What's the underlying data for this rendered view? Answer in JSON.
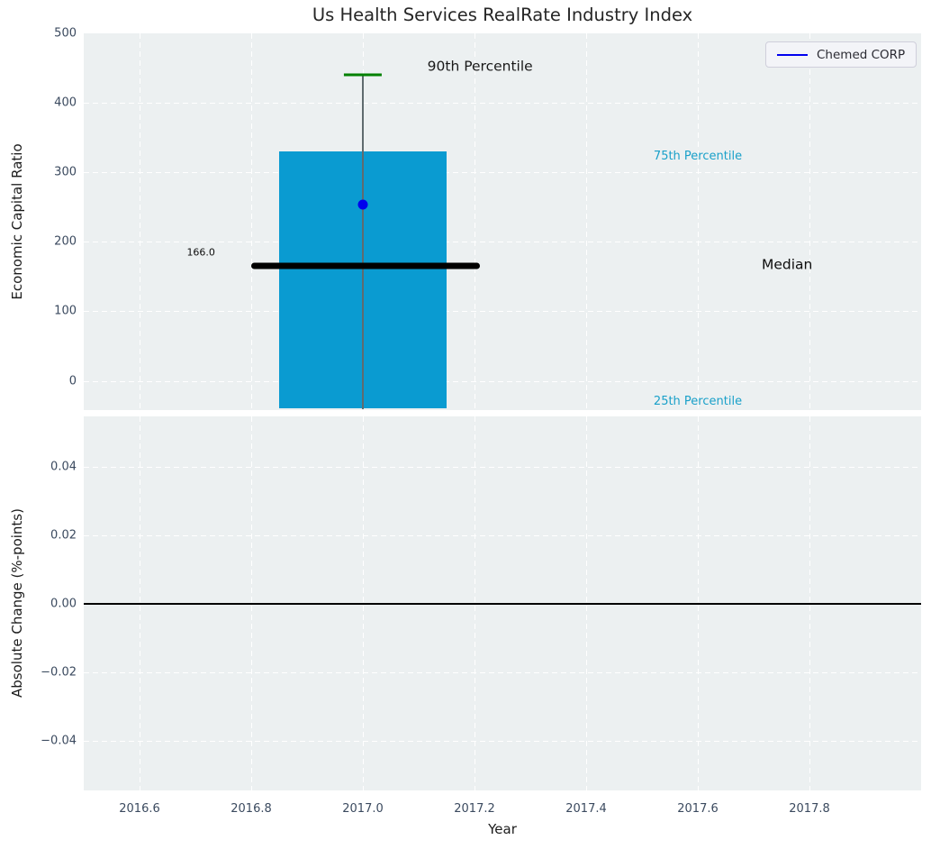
{
  "legend": {
    "label": "Chemed CORP",
    "line_color": "#0000ee"
  },
  "colors": {
    "background": "#ecf0f1",
    "grid": "#ffffff",
    "bar": "#0a9bd1",
    "whisker": "#5f6b6f",
    "cap": "#008000",
    "median": "#000000",
    "marker": "#0000ee",
    "zero_line": "#000000",
    "tick_text": "#3b4a5f"
  },
  "chart_data": {
    "type": "box",
    "title": "Us Health Services RealRate Industry Index",
    "xlabel": "Year",
    "xlim": [
      2016.5,
      2018.0
    ],
    "grid": "on",
    "legend_position": "upper right",
    "xticks": [
      {
        "value": 2016.6,
        "label": "2016.6"
      },
      {
        "value": 2016.8,
        "label": "2016.8"
      },
      {
        "value": 2017.0,
        "label": "2017.0"
      },
      {
        "value": 2017.2,
        "label": "2017.2"
      },
      {
        "value": 2017.4,
        "label": "2017.4"
      },
      {
        "value": 2017.6,
        "label": "2017.6"
      },
      {
        "value": 2017.8,
        "label": "2017.8"
      }
    ],
    "panels": [
      {
        "ylabel": "Economic Capital Ratio",
        "ylim": [
          -42,
          500
        ],
        "yticks": [
          {
            "value": 0,
            "label": "0",
            "grid": true
          },
          {
            "value": 100,
            "label": "100",
            "grid": true
          },
          {
            "value": 200,
            "label": "200",
            "grid": true
          },
          {
            "value": 300,
            "label": "300",
            "grid": true
          },
          {
            "value": 400,
            "label": "400",
            "grid": true
          },
          {
            "value": 500,
            "label": "500",
            "grid": false
          }
        ],
        "box": {
          "x": 2017.0,
          "width": 0.3,
          "p25": -40,
          "p75": 330,
          "median": 166.0,
          "p90": 440,
          "whisker_low": -41,
          "median_x0": 2016.8,
          "median_x1": 2017.21,
          "cap_width": 0.034
        },
        "marker": {
          "name": "Chemed CORP",
          "x": 2017.0,
          "y": 253
        },
        "annotations": [
          {
            "text": "90th Percentile",
            "x": 2017.21,
            "y": 452,
            "color": "#1a1a1a",
            "size": 15.5
          },
          {
            "text": "75th Percentile",
            "x": 2017.6,
            "y": 322,
            "color": "#19a0c9",
            "size": 13
          },
          {
            "text": "Median",
            "x": 2017.76,
            "y": 167,
            "color": "#0d0d0d",
            "size": 15.5
          },
          {
            "text": "25th Percentile",
            "x": 2017.6,
            "y": -30,
            "color": "#19a0c9",
            "size": 13
          },
          {
            "text": "166.0",
            "x": 2016.71,
            "y": 185,
            "color": "#0d0d0d",
            "size": 11
          }
        ]
      },
      {
        "ylabel": "Absolute Change (%-points)",
        "ylim": [
          -0.0545,
          0.0547
        ],
        "zero_line": 0.0,
        "yticks": [
          {
            "value": 0.04,
            "label": "0.04",
            "grid": true
          },
          {
            "value": 0.02,
            "label": "0.02",
            "grid": true
          },
          {
            "value": 0.0,
            "label": "0.00",
            "grid": true
          },
          {
            "value": -0.02,
            "label": "−0.02",
            "grid": true
          },
          {
            "value": -0.04,
            "label": "−0.04",
            "grid": true
          }
        ],
        "annotations": []
      }
    ]
  }
}
